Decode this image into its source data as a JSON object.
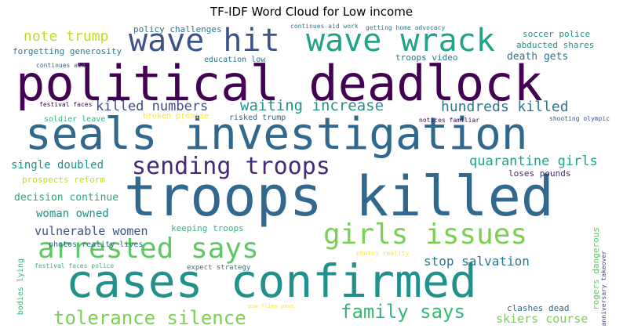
{
  "chart_data": {
    "type": "wordcloud",
    "title": "TF-IDF Word Cloud for Low income",
    "palette": "viridis",
    "words": [
      {
        "text": "political deadlock",
        "weight": 1.0,
        "color": "#440154"
      },
      {
        "text": "troops killed",
        "weight": 0.98,
        "color": "#31688e"
      },
      {
        "text": "seals investigation",
        "weight": 0.78,
        "color": "#31688e"
      },
      {
        "text": "cases confirmed",
        "weight": 0.73,
        "color": "#21918c"
      },
      {
        "text": "wave wrack",
        "weight": 0.5,
        "color": "#20a386"
      },
      {
        "text": "wave hit",
        "weight": 0.49,
        "color": "#3b528b"
      },
      {
        "text": "girls issues",
        "weight": 0.45,
        "color": "#7ad151"
      },
      {
        "text": "arrested says",
        "weight": 0.45,
        "color": "#5ec962"
      },
      {
        "text": "sending troops",
        "weight": 0.36,
        "color": "#482878"
      },
      {
        "text": "tolerance silence",
        "weight": 0.32,
        "color": "#7ad151"
      },
      {
        "text": "family says",
        "weight": 0.3,
        "color": "#35b779"
      },
      {
        "text": "waiting increase",
        "weight": 0.22,
        "color": "#21918c"
      },
      {
        "text": "hundreds killed",
        "weight": 0.21,
        "color": "#2a788e"
      },
      {
        "text": "killed numbers",
        "weight": 0.2,
        "color": "#3e4a89"
      },
      {
        "text": "quarantine girls",
        "weight": 0.2,
        "color": "#20a386"
      },
      {
        "text": "note trump",
        "weight": 0.2,
        "color": "#bddf26"
      },
      {
        "text": "stop salvation",
        "weight": 0.18,
        "color": "#2a788e"
      },
      {
        "text": "vulnerable women",
        "weight": 0.17,
        "color": "#3b528b"
      },
      {
        "text": "skiers course",
        "weight": 0.17,
        "color": "#7ad151"
      },
      {
        "text": "single doubled",
        "weight": 0.16,
        "color": "#21918c"
      },
      {
        "text": "woman owned",
        "weight": 0.15,
        "color": "#21918c"
      },
      {
        "text": "decision continue",
        "weight": 0.13,
        "color": "#22a884"
      },
      {
        "text": "death gets",
        "weight": 0.13,
        "color": "#2a788e"
      },
      {
        "text": "clashes dead",
        "weight": 0.12,
        "color": "#31688e"
      },
      {
        "text": "soccer police",
        "weight": 0.12,
        "color": "#21918c"
      },
      {
        "text": "rogers dangerous",
        "weight": 0.12,
        "color": "#5ec962"
      },
      {
        "text": "forgetting generosity",
        "weight": 0.11,
        "color": "#2a788e"
      },
      {
        "text": "abducted shares",
        "weight": 0.11,
        "color": "#21918c"
      },
      {
        "text": "troops video",
        "weight": 0.1,
        "color": "#2a788e"
      },
      {
        "text": "keeping troops",
        "weight": 0.1,
        "color": "#35b779"
      },
      {
        "text": "prospects reform",
        "weight": 0.1,
        "color": "#bddf26"
      },
      {
        "text": "loses pounds",
        "weight": 0.1,
        "color": "#482878"
      },
      {
        "text": "policy challenges",
        "weight": 0.1,
        "color": "#2a788e"
      },
      {
        "text": "education low",
        "weight": 0.09,
        "color": "#2a788e"
      },
      {
        "text": "soldier leave",
        "weight": 0.09,
        "color": "#35b779"
      },
      {
        "text": "risked trump",
        "weight": 0.09,
        "color": "#31688e"
      },
      {
        "text": "bodies lying",
        "weight": 0.09,
        "color": "#35b779"
      },
      {
        "text": "broken promise",
        "weight": 0.08,
        "color": "#fde725"
      },
      {
        "text": "photos reality lives",
        "weight": 0.08,
        "color": "#31688e"
      },
      {
        "text": "expect strategy",
        "weight": 0.07,
        "color": "#2a788e"
      },
      {
        "text": "festival faces police",
        "weight": 0.07,
        "color": "#35b779"
      },
      {
        "text": "festival faces",
        "weight": 0.06,
        "color": "#440154"
      },
      {
        "text": "continues aid",
        "weight": 0.06,
        "color": "#31688e"
      },
      {
        "text": "continues aid work",
        "weight": 0.06,
        "color": "#2a788e"
      },
      {
        "text": "getting home advocacy",
        "weight": 0.06,
        "color": "#2a788e"
      },
      {
        "text": "notices familiar",
        "weight": 0.06,
        "color": "#440154"
      },
      {
        "text": "shooting olympic",
        "weight": 0.06,
        "color": "#3b528b"
      },
      {
        "text": "anniversary takeover",
        "weight": 0.06,
        "color": "#3e4a89"
      },
      {
        "text": "photos reality",
        "weight": 0.06,
        "color": "#fde725"
      },
      {
        "text": "pow flies pows",
        "weight": 0.05,
        "color": "#fde725"
      }
    ]
  }
}
